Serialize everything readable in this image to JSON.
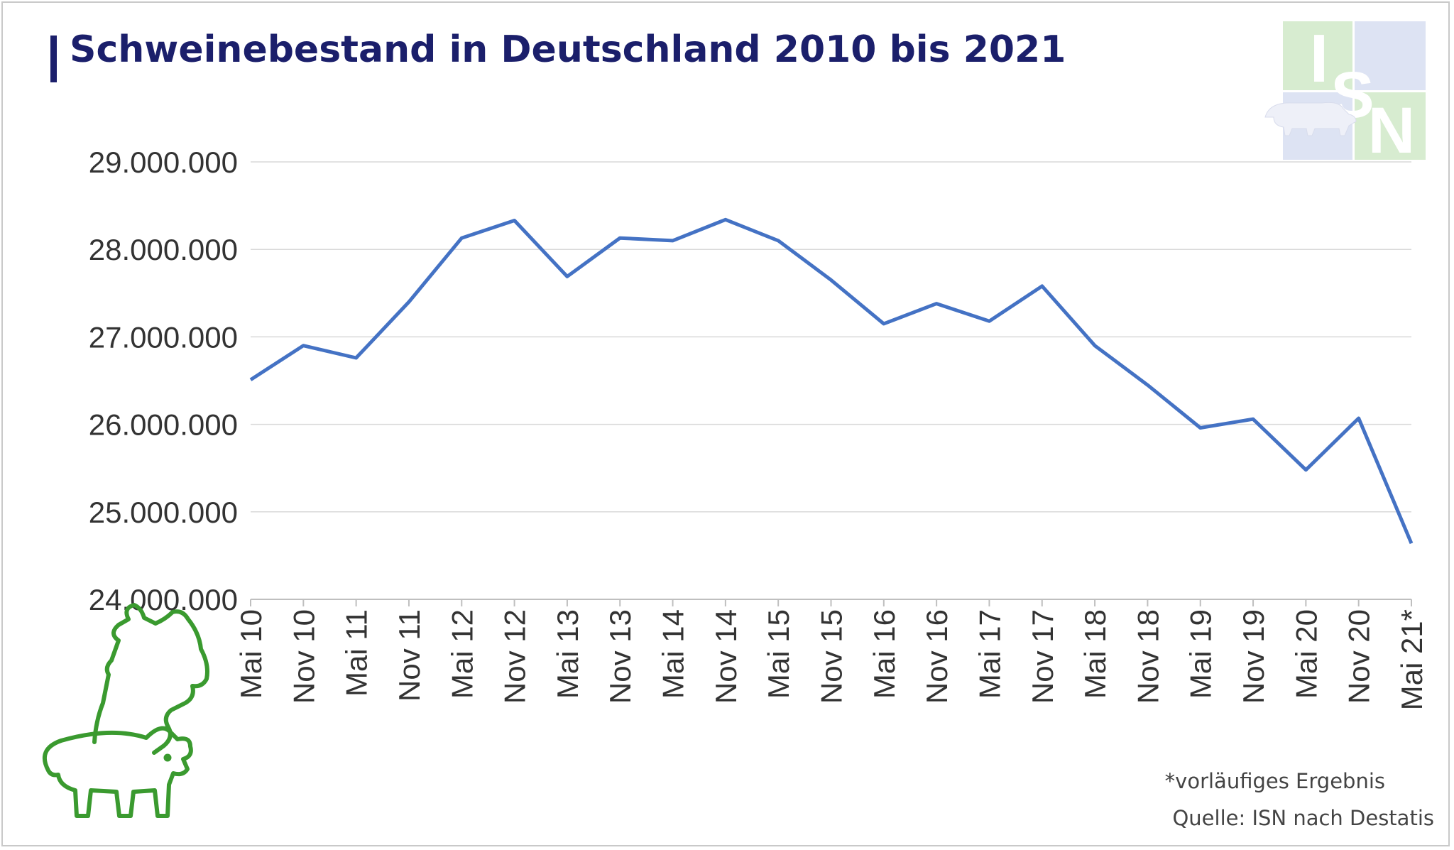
{
  "header": {
    "title": "Schweinebestand in Deutschland 2010 bis 2021"
  },
  "logo": {
    "letters": [
      "I",
      "S",
      "N"
    ],
    "icon": "pig-silhouette-icon"
  },
  "footer": {
    "footnote": "*vorläufiges Ergebnis",
    "source": "Quelle: ISN nach Destatis"
  },
  "colors": {
    "line": "#4472c4",
    "title": "#1b1f6b",
    "grid": "#d9d9d9",
    "pig_outline": "#3a9a2f",
    "logo_green": "#d7ecd0",
    "logo_blue": "#dde3f3"
  },
  "chart_data": {
    "type": "line",
    "title": "Schweinebestand in Deutschland 2010 bis 2021",
    "categories": [
      "Mai 10",
      "Nov 10",
      "Mai 11",
      "Nov 11",
      "Mai 12",
      "Nov 12",
      "Mai 13",
      "Nov 13",
      "Mai 14",
      "Nov 14",
      "Mai 15",
      "Nov 15",
      "Mai 16",
      "Nov 16",
      "Mai 17",
      "Nov 17",
      "Mai 18",
      "Nov 18",
      "Mai 19",
      "Nov 19",
      "Mai 20",
      "Nov 20",
      "Mai 21*"
    ],
    "series": [
      {
        "values": [
          26510000,
          26900000,
          26760000,
          27400000,
          28130000,
          28330000,
          27690000,
          28130000,
          28100000,
          28340000,
          28100000,
          27650000,
          27150000,
          27380000,
          27180000,
          27580000,
          26900000,
          26450000,
          25960000,
          26060000,
          25480000,
          26070000,
          24640000
        ]
      }
    ],
    "ylim": [
      24000000,
      29000000
    ],
    "yticks": [
      24000000,
      25000000,
      26000000,
      27000000,
      28000000,
      29000000
    ],
    "ytick_labels": [
      "24.000.000",
      "25.000.000",
      "26.000.000",
      "27.000.000",
      "28.000.000",
      "29.000.000"
    ],
    "grid": true,
    "legend": "none"
  }
}
